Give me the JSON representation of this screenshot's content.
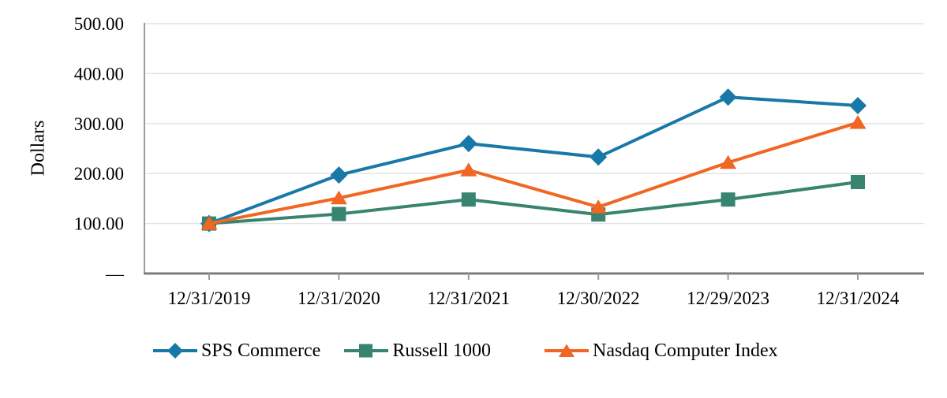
{
  "chart_data": {
    "type": "line",
    "title": "",
    "xlabel": "",
    "ylabel": "Dollars",
    "ylim": [
      0,
      500
    ],
    "grid": true,
    "legend_position": "bottom",
    "categories": [
      "12/31/2019",
      "12/31/2020",
      "12/31/2021",
      "12/30/2022",
      "12/29/2023",
      "12/31/2024"
    ],
    "y_ticks": [
      {
        "value": 0,
        "label": "—"
      },
      {
        "value": 100,
        "label": "100.00"
      },
      {
        "value": 200,
        "label": "200.00"
      },
      {
        "value": 300,
        "label": "300.00"
      },
      {
        "value": 400,
        "label": "400.00"
      },
      {
        "value": 500,
        "label": "500.00"
      }
    ],
    "series": [
      {
        "name": "SPS Commerce",
        "marker": "diamond",
        "color": "#1879a8",
        "values": [
          100.0,
          197.0,
          260.0,
          233.0,
          353.0,
          336.0
        ]
      },
      {
        "name": "Russell 1000",
        "marker": "square",
        "color": "#388471",
        "values": [
          100.0,
          119.0,
          148.0,
          118.0,
          148.0,
          183.0
        ]
      },
      {
        "name": "Nasdaq Computer Index",
        "marker": "triangle",
        "color": "#f16622",
        "values": [
          100.0,
          151.0,
          207.0,
          133.0,
          222.0,
          302.0
        ]
      }
    ]
  }
}
